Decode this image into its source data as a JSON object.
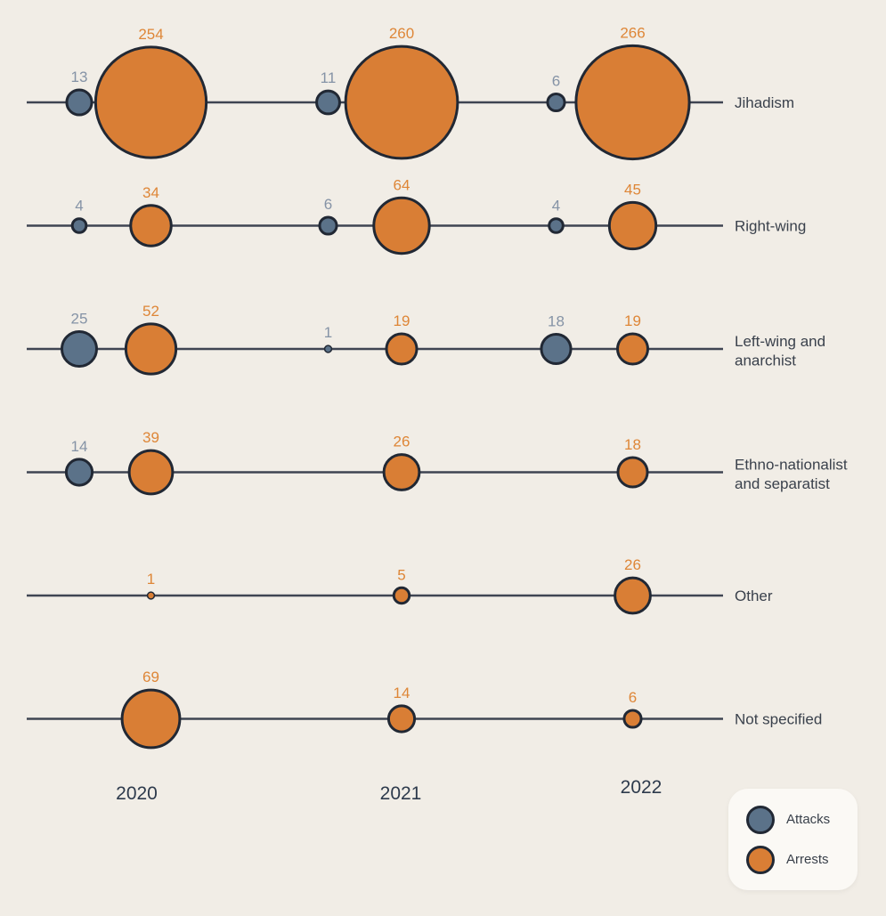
{
  "chart_data": {
    "type": "bubble",
    "title": "",
    "years": [
      "2020",
      "2021",
      "2022"
    ],
    "rows": [
      {
        "label_lines": [
          "Jihadism"
        ],
        "attacks": [
          13,
          11,
          6
        ],
        "arrests": [
          254,
          260,
          266
        ]
      },
      {
        "label_lines": [
          "Right-wing"
        ],
        "attacks": [
          4,
          6,
          4
        ],
        "arrests": [
          34,
          64,
          45
        ]
      },
      {
        "label_lines": [
          "Left-wing and",
          "anarchist"
        ],
        "attacks": [
          25,
          1,
          18
        ],
        "arrests": [
          52,
          19,
          19
        ]
      },
      {
        "label_lines": [
          "Ethno-nationalist",
          "and separatist"
        ],
        "attacks": [
          14,
          null,
          null
        ],
        "arrests": [
          39,
          26,
          18
        ]
      },
      {
        "label_lines": [
          "Other"
        ],
        "attacks": [
          null,
          null,
          null
        ],
        "arrests": [
          1,
          5,
          26
        ]
      },
      {
        "label_lines": [
          "Not specified"
        ],
        "attacks": [
          null,
          null,
          null
        ],
        "arrests": [
          69,
          14,
          6
        ]
      }
    ],
    "legend": {
      "position": "bottom-right",
      "items": [
        {
          "key": "attacks",
          "label": "Attacks",
          "color": "#5b7289"
        },
        {
          "key": "arrests",
          "label": "Arrests",
          "color": "#d97e35"
        }
      ]
    },
    "colors": {
      "background": "#f1ede6",
      "attacks_fill": "#5b7289",
      "arrests_fill": "#d97e35",
      "bubble_stroke": "#212834",
      "row_line": "#3f4552",
      "attacks_value_text": "#8593a6",
      "arrests_value_text": "#de8637",
      "row_label_text": "#3a414c",
      "year_text": "#2d3a4c",
      "legend_bg": "#fbf9f5"
    }
  }
}
